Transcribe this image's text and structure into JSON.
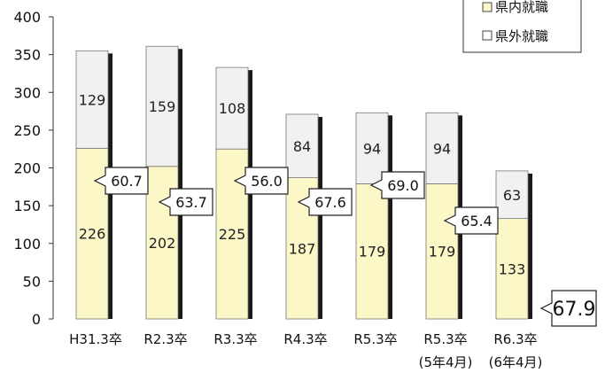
{
  "chart_data": {
    "type": "bar",
    "stacked": true,
    "categories": [
      "H31.3卒",
      "R2.3卒",
      "R3.3卒",
      "R4.3卒",
      "R5.3卒",
      "R5.3卒",
      "R6.3卒"
    ],
    "category_sublabels": [
      "",
      "",
      "",
      "",
      "",
      "(5年4月)",
      "(6年4月)"
    ],
    "series": [
      {
        "name": "県内就職",
        "values": [
          226,
          202,
          225,
          187,
          179,
          179,
          133
        ],
        "color": "#fbf7c6"
      },
      {
        "name": "県外就職",
        "values": [
          129,
          159,
          108,
          84,
          94,
          94,
          63
        ],
        "color": "#f1f1f1"
      }
    ],
    "ratio_callouts": [
      "60.7",
      "63.7",
      "56.0",
      "67.6",
      "69.0",
      "65.4",
      "67.9"
    ],
    "ylim": [
      0,
      400
    ],
    "yticks": [
      0,
      50,
      100,
      150,
      200,
      250,
      300,
      350,
      400
    ],
    "grid": false,
    "legend_position": "top-right"
  }
}
